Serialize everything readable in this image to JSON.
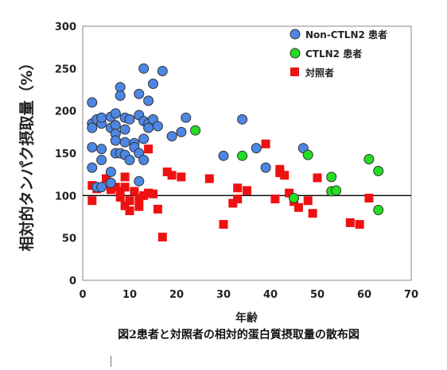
{
  "caption": "図2患者と対照者の相対的蛋白質摂取量の散布図",
  "chart_data": {
    "type": "scatter",
    "title": "",
    "xlabel": "年齢",
    "ylabel": "相対的タンパク摂取量（%）",
    "xlim": [
      0,
      70
    ],
    "ylim": [
      0,
      300
    ],
    "xticks": [
      "0",
      "10",
      "20",
      "30",
      "40",
      "50",
      "60",
      "70"
    ],
    "yticks": [
      "0",
      "50",
      "100",
      "150",
      "200",
      "250",
      "300"
    ],
    "grid": false,
    "reference_line_y": 100,
    "legend_position": "top-right",
    "series": [
      {
        "name": "Non-CTLN2 患者",
        "marker": "circle",
        "color": "#4d86e3",
        "points": [
          [
            2,
            210
          ],
          [
            2,
            185
          ],
          [
            2,
            180
          ],
          [
            3,
            190
          ],
          [
            2,
            157
          ],
          [
            2,
            133
          ],
          [
            3,
            110
          ],
          [
            4,
            110
          ],
          [
            4,
            185
          ],
          [
            4,
            192
          ],
          [
            4,
            155
          ],
          [
            4,
            142
          ],
          [
            6,
            193
          ],
          [
            6,
            180
          ],
          [
            6,
            128
          ],
          [
            6,
            115
          ],
          [
            7,
            183
          ],
          [
            7,
            197
          ],
          [
            7,
            173
          ],
          [
            7,
            165
          ],
          [
            7,
            150
          ],
          [
            8,
            228
          ],
          [
            8,
            218
          ],
          [
            8,
            150
          ],
          [
            9,
            192
          ],
          [
            9,
            178
          ],
          [
            9,
            163
          ],
          [
            9,
            148
          ],
          [
            10,
            190
          ],
          [
            10,
            142
          ],
          [
            11,
            162
          ],
          [
            11,
            157
          ],
          [
            12,
            150
          ],
          [
            12,
            220
          ],
          [
            12,
            195
          ],
          [
            12,
            117
          ],
          [
            13,
            250
          ],
          [
            13,
            188
          ],
          [
            13,
            167
          ],
          [
            13,
            142
          ],
          [
            14,
            185
          ],
          [
            14,
            180
          ],
          [
            14,
            212
          ],
          [
            15,
            232
          ],
          [
            15,
            190
          ],
          [
            16,
            182
          ],
          [
            17,
            247
          ],
          [
            19,
            170
          ],
          [
            21,
            175
          ],
          [
            22,
            192
          ],
          [
            30,
            147
          ],
          [
            34,
            190
          ],
          [
            37,
            156
          ],
          [
            39,
            133
          ],
          [
            47,
            156
          ]
        ]
      },
      {
        "name": "CTLN2 患者",
        "marker": "circle",
        "color": "#22dd22",
        "points": [
          [
            24,
            177
          ],
          [
            34,
            147
          ],
          [
            45,
            97
          ],
          [
            48,
            148
          ],
          [
            53,
            122
          ],
          [
            53,
            105
          ],
          [
            54,
            106
          ],
          [
            61,
            143
          ],
          [
            63,
            129
          ],
          [
            63,
            83
          ]
        ]
      },
      {
        "name": "対照者",
        "marker": "square",
        "color": "#ee1111",
        "points": [
          [
            2,
            112
          ],
          [
            2,
            94
          ],
          [
            3,
            108
          ],
          [
            5,
            120
          ],
          [
            6,
            107
          ],
          [
            7,
            110
          ],
          [
            8,
            98
          ],
          [
            8,
            105
          ],
          [
            9,
            122
          ],
          [
            9,
            110
          ],
          [
            9,
            88
          ],
          [
            10,
            82
          ],
          [
            10,
            94
          ],
          [
            11,
            105
          ],
          [
            12,
            97
          ],
          [
            12,
            87
          ],
          [
            13,
            100
          ],
          [
            14,
            103
          ],
          [
            14,
            155
          ],
          [
            15,
            102
          ],
          [
            16,
            84
          ],
          [
            17,
            51
          ],
          [
            18,
            128
          ],
          [
            19,
            124
          ],
          [
            21,
            122
          ],
          [
            27,
            120
          ],
          [
            30,
            66
          ],
          [
            32,
            91
          ],
          [
            33,
            109
          ],
          [
            33,
            96
          ],
          [
            35,
            106
          ],
          [
            39,
            161
          ],
          [
            41,
            96
          ],
          [
            42,
            131
          ],
          [
            42,
            127
          ],
          [
            43,
            124
          ],
          [
            44,
            103
          ],
          [
            45,
            93
          ],
          [
            46,
            86
          ],
          [
            48,
            94
          ],
          [
            49,
            79
          ],
          [
            50,
            121
          ],
          [
            57,
            68
          ],
          [
            59,
            66
          ],
          [
            61,
            97
          ]
        ]
      }
    ]
  }
}
